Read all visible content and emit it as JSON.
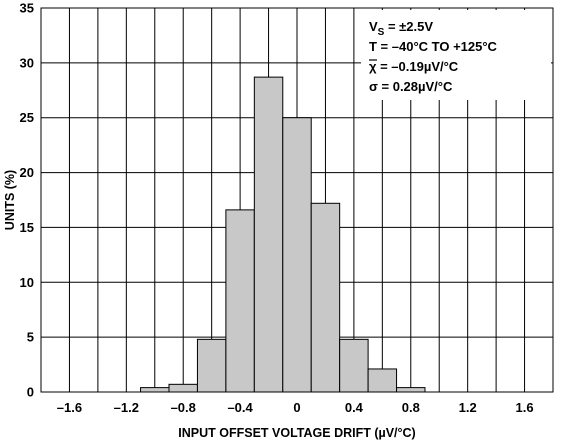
{
  "chart_data": {
    "type": "bar",
    "bin_width": 0.2,
    "bins": [
      {
        "center": -1.0,
        "value": 0.4
      },
      {
        "center": -0.8,
        "value": 0.7
      },
      {
        "center": -0.6,
        "value": 4.8
      },
      {
        "center": -0.4,
        "value": 16.6
      },
      {
        "center": -0.2,
        "value": 28.7
      },
      {
        "center": 0.0,
        "value": 25.0
      },
      {
        "center": 0.2,
        "value": 17.2
      },
      {
        "center": 0.4,
        "value": 4.8
      },
      {
        "center": 0.6,
        "value": 2.1
      },
      {
        "center": 0.8,
        "value": 0.4
      }
    ],
    "xlim": [
      -1.8,
      1.8
    ],
    "ylim": [
      0,
      35
    ],
    "xticks": [
      -1.6,
      -1.2,
      -0.8,
      -0.4,
      0,
      0.4,
      0.8,
      1.2,
      1.6
    ],
    "xtick_labels": [
      "–1.6",
      "–1.2",
      "–0.8",
      "–0.4",
      "0",
      "0.4",
      "0.8",
      "1.2",
      "1.6"
    ],
    "yticks": [
      0,
      5,
      10,
      15,
      20,
      25,
      30,
      35
    ],
    "ytick_labels": [
      "0",
      "5",
      "10",
      "15",
      "20",
      "25",
      "30",
      "35"
    ],
    "xgrid_step": 0.2,
    "grid": true,
    "xlabel": "INPUT OFFSET VOLTAGE DRIFT (µV/°C)",
    "ylabel": "UNITS (%)",
    "annotation": {
      "placement": "top-right",
      "line1_main": "V",
      "line1_sub": "S",
      "line1_rest": " = ±2.5V",
      "line2": "T = –40°C TO +125°C",
      "line3": "χ = –0.19µV/°C",
      "line4": "σ = 0.28µV/°C"
    },
    "colors": {
      "bar_fill": "#c8c8c8",
      "bar_stroke": "#000000",
      "grid": "#000000",
      "background": "#ffffff"
    }
  }
}
